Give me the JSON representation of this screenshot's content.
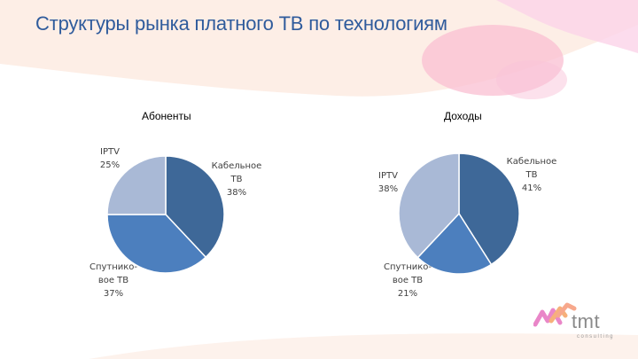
{
  "slide": {
    "title": "Структуры рынка платного ТВ по технологиям",
    "logo": {
      "text": "tmt",
      "sub": "consulting"
    }
  },
  "chart_data": [
    {
      "type": "pie",
      "title": "Абоненты",
      "slices": [
        {
          "label": "Кабельное ТВ",
          "label_lines": [
            "Кабельное",
            "ТВ"
          ],
          "value": 38,
          "value_label": "38%",
          "color": "#3e6898"
        },
        {
          "label": "Спутниковое ТВ",
          "label_lines": [
            "Спутнико-",
            "вое ТВ"
          ],
          "value": 37,
          "value_label": "37%",
          "color": "#4c7fbe"
        },
        {
          "label": "IPTV",
          "label_lines": [
            "IPTV"
          ],
          "value": 25,
          "value_label": "25%",
          "color": "#a9b9d6"
        }
      ]
    },
    {
      "type": "pie",
      "title": "Доходы",
      "slices": [
        {
          "label": "Кабельное ТВ",
          "label_lines": [
            "Кабельное",
            "ТВ"
          ],
          "value": 41,
          "value_label": "41%",
          "color": "#3e6898"
        },
        {
          "label": "Спутниковое ТВ",
          "label_lines": [
            "Спутнико-",
            "вое ТВ"
          ],
          "value": 21,
          "value_label": "21%",
          "color": "#4c7fbe"
        },
        {
          "label": "IPTV",
          "label_lines": [
            "IPTV"
          ],
          "value": 38,
          "value_label": "38%",
          "color": "#a9b9d6"
        }
      ]
    }
  ]
}
